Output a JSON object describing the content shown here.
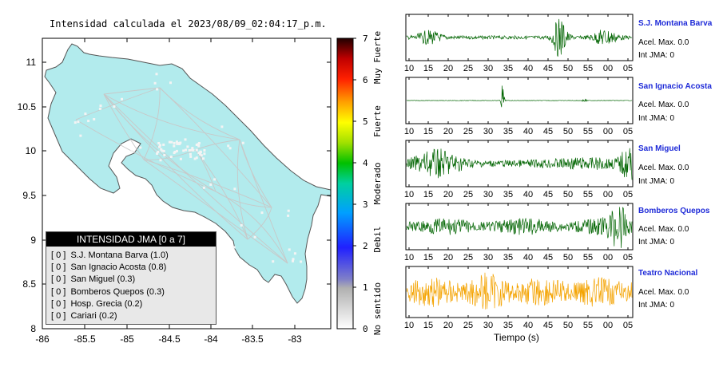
{
  "map": {
    "title": "Intensidad calculada el 2023/08/09_02:04:17_p.m.",
    "x_ticks": [
      "-86",
      "-85.5",
      "-85",
      "-84.5",
      "-84",
      "-83.5",
      "-83"
    ],
    "y_ticks": [
      "11",
      "10.5",
      "10",
      "9.5",
      "9",
      "8.5",
      "8"
    ],
    "fill_color": "#b2ebed"
  },
  "colorbar": {
    "ticks": [
      "0",
      "1",
      "2",
      "3",
      "4",
      "5",
      "6",
      "7"
    ],
    "categories": [
      "No sentido",
      "Debil",
      "Moderado",
      "Fuerte",
      "Muy Fuerte"
    ]
  },
  "legend": {
    "title": "INTENSIDAD JMA [0 a 7]",
    "items": [
      {
        "mark": "[ 0 ]",
        "label": "S.J. Montana Barva (1.0)"
      },
      {
        "mark": "[ 0 ]",
        "label": "San Ignacio Acosta (0.8)"
      },
      {
        "mark": "[ 0 ]",
        "label": "San Miguel (0.3)"
      },
      {
        "mark": "[ 0 ]",
        "label": "Bomberos Quepos (0.3)"
      },
      {
        "mark": "[ 0 ]",
        "label": "Hosp. Grecia (0.2)"
      },
      {
        "mark": "[ 0 ]",
        "label": "Cariari (0.2)"
      }
    ]
  },
  "stations": [
    {
      "name": "S.J. Montana Barva",
      "acel": "Acel. Max. 0.0",
      "int": "Int JMA: 0",
      "color": "#006400",
      "ticks": [
        "10",
        "15",
        "20",
        "25",
        "30",
        "35",
        "40",
        "45",
        "50",
        "55",
        "00",
        "05"
      ]
    },
    {
      "name": "San Ignacio Acosta",
      "acel": "Acel. Max. 0.0",
      "int": "Int JMA: 0",
      "color": "#006400",
      "ticks": [
        "10",
        "15",
        "20",
        "25",
        "30",
        "35",
        "40",
        "45",
        "50",
        "55",
        "00",
        "05"
      ]
    },
    {
      "name": "San Miguel",
      "acel": "Acel. Max. 0.0",
      "int": "Int JMA: 0",
      "color": "#006400",
      "ticks": [
        "10",
        "15",
        "20",
        "25",
        "30",
        "35",
        "40",
        "45",
        "50",
        "55",
        "00",
        "05"
      ]
    },
    {
      "name": "Bomberos Quepos",
      "acel": "Acel. Max. 0.0",
      "int": "Int JMA: 0",
      "color": "#006400",
      "ticks": [
        "10",
        "15",
        "20",
        "25",
        "30",
        "35",
        "40",
        "45",
        "50",
        "55",
        "00",
        "05"
      ]
    },
    {
      "name": "Teatro Nacional",
      "acel": "Acel. Max. 0.0",
      "int": "Int JMA: 0",
      "color": "#f4a300",
      "ticks": [
        "10",
        "15",
        "20",
        "25",
        "30",
        "35",
        "40",
        "45",
        "50",
        "55",
        "00",
        "05"
      ]
    }
  ],
  "time_axis_label": "Tiempo (s)",
  "chart_data": [
    {
      "type": "map",
      "title": "Intensidad calculada el 2023/08/09_02:04:17_p.m.",
      "xlim": [
        -86,
        -82.5
      ],
      "ylim": [
        8,
        11.3
      ],
      "colorbar_range": [
        0,
        7
      ]
    },
    {
      "type": "line",
      "series": [
        {
          "name": "S.J. Montana Barva",
          "acel_max": 0.0,
          "int_jma": 0
        },
        {
          "name": "San Ignacio Acosta",
          "acel_max": 0.0,
          "int_jma": 0
        },
        {
          "name": "San Miguel",
          "acel_max": 0.0,
          "int_jma": 0
        },
        {
          "name": "Bomberos Quepos",
          "acel_max": 0.0,
          "int_jma": 0
        },
        {
          "name": "Teatro Nacional",
          "acel_max": 0.0,
          "int_jma": 0
        }
      ],
      "xlabel": "Tiempo (s)"
    }
  ]
}
